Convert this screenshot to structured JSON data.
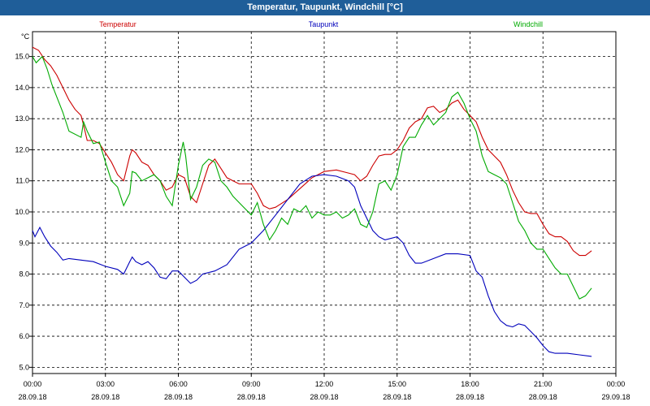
{
  "window": {
    "title": "Temperatur, Taupunkt, Windchill [°C]"
  },
  "chart_data": {
    "type": "line",
    "title": "Temperatur, Taupunkt, Windchill [°C]",
    "ylabel": "°C",
    "ylim": [
      4.8,
      15.8
    ],
    "xlim": [
      0,
      24
    ],
    "grid": true,
    "legend": "top",
    "y_ticks": [
      "5.0",
      "6.0",
      "7.0",
      "8.0",
      "9.0",
      "10.0",
      "11.0",
      "12.0",
      "13.0",
      "14.0",
      "15.0"
    ],
    "x_ticks": [
      {
        "time": "00:00",
        "date": "28.09.18"
      },
      {
        "time": "03:00",
        "date": "28.09.18"
      },
      {
        "time": "06:00",
        "date": "28.09.18"
      },
      {
        "time": "09:00",
        "date": "28.09.18"
      },
      {
        "time": "12:00",
        "date": "28.09.18"
      },
      {
        "time": "15:00",
        "date": "28.09.18"
      },
      {
        "time": "18:00",
        "date": "28.09.18"
      },
      {
        "time": "21:00",
        "date": "28.09.18"
      },
      {
        "time": "00:00",
        "date": "29.09.18"
      }
    ],
    "series": [
      {
        "name": "Temperatur",
        "color": "#cc0000",
        "points": [
          [
            0,
            15.3
          ],
          [
            0.25,
            15.2
          ],
          [
            0.5,
            14.9
          ],
          [
            0.75,
            14.7
          ],
          [
            1.0,
            14.4
          ],
          [
            1.25,
            14.0
          ],
          [
            1.5,
            13.6
          ],
          [
            1.75,
            13.3
          ],
          [
            2.0,
            13.1
          ],
          [
            2.1,
            12.8
          ],
          [
            2.25,
            12.3
          ],
          [
            2.5,
            12.3
          ],
          [
            2.75,
            12.2
          ],
          [
            3.0,
            11.9
          ],
          [
            3.25,
            11.6
          ],
          [
            3.5,
            11.2
          ],
          [
            3.75,
            11.0
          ],
          [
            4.0,
            11.8
          ],
          [
            4.1,
            12.0
          ],
          [
            4.25,
            11.9
          ],
          [
            4.5,
            11.6
          ],
          [
            4.75,
            11.5
          ],
          [
            5.0,
            11.2
          ],
          [
            5.25,
            11.0
          ],
          [
            5.5,
            10.7
          ],
          [
            5.75,
            10.8
          ],
          [
            6.0,
            11.2
          ],
          [
            6.25,
            11.1
          ],
          [
            6.5,
            10.5
          ],
          [
            6.75,
            10.3
          ],
          [
            7.0,
            10.9
          ],
          [
            7.25,
            11.5
          ],
          [
            7.5,
            11.7
          ],
          [
            7.75,
            11.4
          ],
          [
            8.0,
            11.1
          ],
          [
            8.5,
            10.9
          ],
          [
            9.0,
            10.9
          ],
          [
            9.25,
            10.6
          ],
          [
            9.5,
            10.2
          ],
          [
            9.75,
            10.1
          ],
          [
            10.0,
            10.15
          ],
          [
            10.5,
            10.4
          ],
          [
            11.0,
            10.75
          ],
          [
            11.5,
            11.1
          ],
          [
            12.0,
            11.3
          ],
          [
            12.5,
            11.35
          ],
          [
            13.0,
            11.25
          ],
          [
            13.25,
            11.2
          ],
          [
            13.5,
            11.0
          ],
          [
            13.75,
            11.15
          ],
          [
            14.0,
            11.5
          ],
          [
            14.25,
            11.8
          ],
          [
            14.5,
            11.85
          ],
          [
            14.75,
            11.85
          ],
          [
            15.0,
            12.0
          ],
          [
            15.25,
            12.3
          ],
          [
            15.5,
            12.7
          ],
          [
            15.75,
            12.9
          ],
          [
            16.0,
            13.0
          ],
          [
            16.25,
            13.35
          ],
          [
            16.5,
            13.4
          ],
          [
            16.75,
            13.2
          ],
          [
            17.0,
            13.3
          ],
          [
            17.25,
            13.5
          ],
          [
            17.5,
            13.6
          ],
          [
            17.75,
            13.3
          ],
          [
            18.0,
            13.1
          ],
          [
            18.25,
            12.9
          ],
          [
            18.5,
            12.4
          ],
          [
            18.75,
            12.0
          ],
          [
            19.0,
            11.8
          ],
          [
            19.25,
            11.6
          ],
          [
            19.5,
            11.2
          ],
          [
            19.75,
            10.7
          ],
          [
            20.0,
            10.3
          ],
          [
            20.25,
            10.0
          ],
          [
            20.5,
            9.95
          ],
          [
            20.75,
            9.95
          ],
          [
            21.0,
            9.6
          ],
          [
            21.25,
            9.3
          ],
          [
            21.5,
            9.2
          ],
          [
            21.75,
            9.2
          ],
          [
            22.0,
            9.05
          ],
          [
            22.25,
            8.75
          ],
          [
            22.5,
            8.6
          ],
          [
            22.75,
            8.6
          ],
          [
            23.0,
            8.75
          ]
        ]
      },
      {
        "name": "Taupunkt",
        "color": "#0000bb",
        "points": [
          [
            0,
            9.4
          ],
          [
            0.1,
            9.2
          ],
          [
            0.3,
            9.5
          ],
          [
            0.5,
            9.2
          ],
          [
            0.75,
            8.9
          ],
          [
            1.0,
            8.7
          ],
          [
            1.25,
            8.45
          ],
          [
            1.5,
            8.5
          ],
          [
            2.0,
            8.45
          ],
          [
            2.5,
            8.4
          ],
          [
            3.0,
            8.25
          ],
          [
            3.5,
            8.15
          ],
          [
            3.75,
            8.0
          ],
          [
            4.0,
            8.4
          ],
          [
            4.1,
            8.55
          ],
          [
            4.25,
            8.4
          ],
          [
            4.5,
            8.3
          ],
          [
            4.75,
            8.4
          ],
          [
            5.0,
            8.2
          ],
          [
            5.25,
            7.9
          ],
          [
            5.5,
            7.85
          ],
          [
            5.75,
            8.1
          ],
          [
            6.0,
            8.1
          ],
          [
            6.25,
            7.9
          ],
          [
            6.5,
            7.7
          ],
          [
            6.75,
            7.8
          ],
          [
            7.0,
            8.0
          ],
          [
            7.5,
            8.1
          ],
          [
            8.0,
            8.3
          ],
          [
            8.5,
            8.8
          ],
          [
            9.0,
            9.0
          ],
          [
            9.5,
            9.4
          ],
          [
            10.0,
            9.9
          ],
          [
            10.5,
            10.4
          ],
          [
            11.0,
            10.9
          ],
          [
            11.5,
            11.15
          ],
          [
            12.0,
            11.2
          ],
          [
            12.5,
            11.15
          ],
          [
            13.0,
            11.0
          ],
          [
            13.25,
            10.8
          ],
          [
            13.5,
            10.2
          ],
          [
            14.0,
            9.4
          ],
          [
            14.25,
            9.2
          ],
          [
            14.5,
            9.1
          ],
          [
            15.0,
            9.2
          ],
          [
            15.25,
            9.0
          ],
          [
            15.5,
            8.6
          ],
          [
            15.75,
            8.35
          ],
          [
            16.0,
            8.35
          ],
          [
            16.5,
            8.5
          ],
          [
            17.0,
            8.65
          ],
          [
            17.5,
            8.65
          ],
          [
            18.0,
            8.6
          ],
          [
            18.25,
            8.1
          ],
          [
            18.5,
            7.9
          ],
          [
            18.75,
            7.3
          ],
          [
            19.0,
            6.8
          ],
          [
            19.25,
            6.5
          ],
          [
            19.5,
            6.35
          ],
          [
            19.75,
            6.3
          ],
          [
            20.0,
            6.4
          ],
          [
            20.25,
            6.35
          ],
          [
            20.5,
            6.15
          ],
          [
            20.75,
            5.95
          ],
          [
            21.0,
            5.7
          ],
          [
            21.25,
            5.5
          ],
          [
            21.5,
            5.45
          ],
          [
            22.0,
            5.45
          ],
          [
            22.5,
            5.4
          ],
          [
            23.0,
            5.35
          ]
        ]
      },
      {
        "name": "Windchill",
        "color": "#00aa00",
        "points": [
          [
            0,
            15.0
          ],
          [
            0.15,
            14.8
          ],
          [
            0.4,
            15.0
          ],
          [
            0.6,
            14.6
          ],
          [
            0.8,
            14.1
          ],
          [
            1.0,
            13.7
          ],
          [
            1.25,
            13.2
          ],
          [
            1.5,
            12.6
          ],
          [
            2.0,
            12.4
          ],
          [
            2.1,
            12.9
          ],
          [
            2.25,
            12.6
          ],
          [
            2.5,
            12.2
          ],
          [
            2.75,
            12.25
          ],
          [
            3.0,
            11.6
          ],
          [
            3.25,
            11.0
          ],
          [
            3.5,
            10.8
          ],
          [
            3.75,
            10.2
          ],
          [
            4.0,
            10.6
          ],
          [
            4.1,
            11.3
          ],
          [
            4.25,
            11.25
          ],
          [
            4.5,
            11.0
          ],
          [
            4.75,
            11.1
          ],
          [
            5.0,
            11.2
          ],
          [
            5.25,
            11.0
          ],
          [
            5.5,
            10.5
          ],
          [
            5.75,
            10.2
          ],
          [
            6.0,
            11.5
          ],
          [
            6.2,
            12.25
          ],
          [
            6.3,
            11.8
          ],
          [
            6.5,
            10.4
          ],
          [
            6.75,
            10.8
          ],
          [
            7.0,
            11.5
          ],
          [
            7.25,
            11.7
          ],
          [
            7.5,
            11.6
          ],
          [
            7.75,
            11.0
          ],
          [
            8.0,
            10.8
          ],
          [
            8.25,
            10.5
          ],
          [
            8.5,
            10.3
          ],
          [
            9.0,
            9.9
          ],
          [
            9.25,
            10.3
          ],
          [
            9.5,
            9.6
          ],
          [
            9.75,
            9.1
          ],
          [
            10.0,
            9.4
          ],
          [
            10.25,
            9.8
          ],
          [
            10.5,
            9.6
          ],
          [
            10.75,
            10.1
          ],
          [
            11.0,
            10.0
          ],
          [
            11.25,
            10.2
          ],
          [
            11.5,
            9.8
          ],
          [
            11.75,
            10.0
          ],
          [
            12.0,
            9.9
          ],
          [
            12.25,
            9.9
          ],
          [
            12.5,
            10.0
          ],
          [
            12.75,
            9.8
          ],
          [
            13.0,
            9.9
          ],
          [
            13.25,
            10.1
          ],
          [
            13.5,
            9.6
          ],
          [
            13.75,
            9.5
          ],
          [
            14.0,
            10.0
          ],
          [
            14.25,
            10.9
          ],
          [
            14.5,
            11.0
          ],
          [
            14.75,
            10.7
          ],
          [
            15.0,
            11.2
          ],
          [
            15.25,
            12.1
          ],
          [
            15.5,
            12.4
          ],
          [
            15.75,
            12.4
          ],
          [
            16.0,
            12.8
          ],
          [
            16.25,
            13.1
          ],
          [
            16.5,
            12.8
          ],
          [
            16.75,
            13.0
          ],
          [
            17.0,
            13.2
          ],
          [
            17.25,
            13.7
          ],
          [
            17.5,
            13.85
          ],
          [
            17.75,
            13.5
          ],
          [
            18.0,
            13.0
          ],
          [
            18.25,
            12.6
          ],
          [
            18.5,
            11.8
          ],
          [
            18.75,
            11.3
          ],
          [
            19.0,
            11.2
          ],
          [
            19.25,
            11.1
          ],
          [
            19.5,
            10.9
          ],
          [
            19.75,
            10.3
          ],
          [
            20.0,
            9.7
          ],
          [
            20.25,
            9.4
          ],
          [
            20.5,
            9.0
          ],
          [
            20.75,
            8.8
          ],
          [
            21.0,
            8.8
          ],
          [
            21.25,
            8.5
          ],
          [
            21.5,
            8.2
          ],
          [
            21.75,
            8.0
          ],
          [
            22.0,
            8.0
          ],
          [
            22.25,
            7.6
          ],
          [
            22.5,
            7.2
          ],
          [
            22.75,
            7.3
          ],
          [
            23.0,
            7.55
          ]
        ]
      }
    ]
  }
}
